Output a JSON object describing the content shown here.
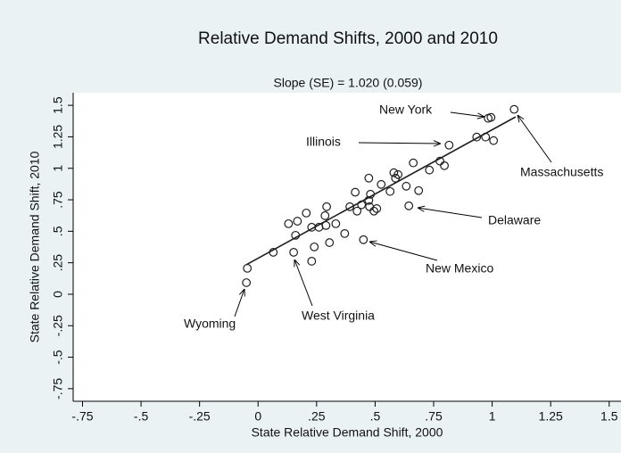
{
  "chart_data": {
    "type": "scatter",
    "title": "Relative Demand Shifts, 2000 and 2010",
    "subtitle": "Slope (SE) = 1.020 (0.059)",
    "x_label": "State Relative Demand Shift, 2000",
    "y_label": "State Relative Demand Shift, 2010",
    "xlim": [
      -0.79,
      1.6
    ],
    "ylim": [
      -0.85,
      1.6
    ],
    "xticks": [
      {
        "value": -0.75,
        "label": "-.75"
      },
      {
        "value": -0.5,
        "label": "-.5"
      },
      {
        "value": -0.25,
        "label": "-.25"
      },
      0,
      {
        "value": 0.25,
        "label": ".25"
      },
      {
        "value": 0.5,
        "label": ".5"
      },
      {
        "value": 0.75,
        "label": ".75"
      },
      1,
      1.25,
      1.5
    ],
    "yticks": [
      {
        "value": -0.75,
        "label": "-.75"
      },
      {
        "value": -0.5,
        "label": "-.5"
      },
      {
        "value": -0.25,
        "label": "-.25"
      },
      0,
      {
        "value": 0.25,
        "label": ".25"
      },
      {
        "value": 0.5,
        "label": ".5"
      },
      {
        "value": 0.75,
        "label": ".75"
      },
      1,
      1.25,
      1.5
    ],
    "color": "#1f1f1f",
    "x": [
      -0.046,
      -0.05,
      0.065,
      0.13,
      0.168,
      0.16,
      0.152,
      0.206,
      0.229,
      0.24,
      0.229,
      0.26,
      0.286,
      0.293,
      0.29,
      0.332,
      0.305,
      0.37,
      0.392,
      0.415,
      0.423,
      0.442,
      0.45,
      0.473,
      0.473,
      0.48,
      0.476,
      0.495,
      0.507,
      0.526,
      0.564,
      0.58,
      0.587,
      0.598,
      0.633,
      0.644,
      0.663,
      0.686,
      0.732,
      0.777,
      0.796,
      0.816,
      0.934,
      0.972,
      0.983,
      0.995,
      1.006,
      1.094
    ],
    "values": [
      0.206,
      0.092,
      0.333,
      0.56,
      0.58,
      0.468,
      0.333,
      0.645,
      0.262,
      0.376,
      0.532,
      0.532,
      0.624,
      0.695,
      0.546,
      0.56,
      0.41,
      0.482,
      0.695,
      0.81,
      0.66,
      0.71,
      0.433,
      0.922,
      0.745,
      0.794,
      0.695,
      0.66,
      0.68,
      0.872,
      0.816,
      0.965,
      0.922,
      0.95,
      0.858,
      0.702,
      1.043,
      0.823,
      0.986,
      1.057,
      1.021,
      1.184,
      1.248,
      1.248,
      1.397,
      1.404,
      1.22,
      1.468
    ],
    "fit_line": {
      "x": [
        -0.05,
        1.1
      ],
      "y": [
        0.235,
        1.408
      ]
    },
    "annotations": [
      "New York",
      "Illinois",
      "Massachusetts",
      "Delaware",
      "New Mexico",
      "West Virginia",
      "Wyoming"
    ]
  }
}
